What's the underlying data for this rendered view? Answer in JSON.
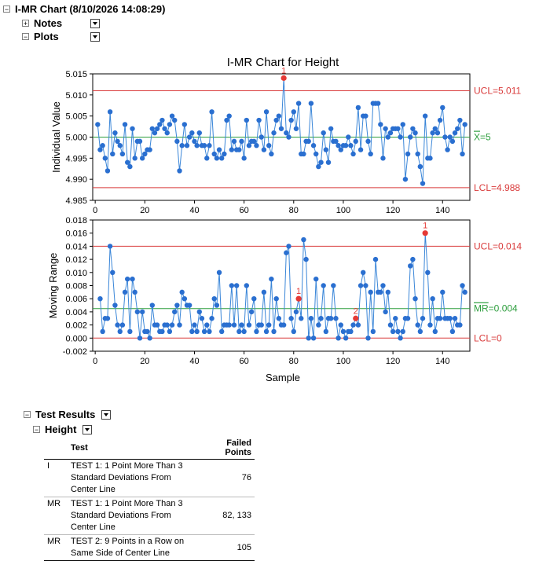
{
  "header": {
    "title": "I-MR Chart (8/10/2026 14:08:29)",
    "notes_label": "Notes",
    "plots_label": "Plots"
  },
  "chart_data": [
    {
      "type": "line",
      "title": "I-MR Chart for Height",
      "ylabel": "Individual Value",
      "xlabel": "",
      "xlim": [
        -1,
        151
      ],
      "ylim": [
        4.985,
        5.015
      ],
      "xticks": [
        0,
        20,
        40,
        60,
        80,
        100,
        120,
        140
      ],
      "yticks": [
        "4.985",
        "4.990",
        "4.995",
        "5.000",
        "5.005",
        "5.010",
        "5.015"
      ],
      "ucl": 5.011,
      "cl": 5.0,
      "lcl": 4.988,
      "ucl_label": "UCL=5.011",
      "cl_label": "=5",
      "cl_symbol": "X",
      "lcl_label": "LCL=4.988",
      "flagged": [
        {
          "x": 76,
          "label": "1"
        }
      ],
      "series": [
        {
          "values": [
            5.003,
            4.997,
            4.998,
            4.995,
            4.992,
            5.006,
            4.996,
            5.001,
            4.999,
            4.998,
            4.996,
            5.003,
            4.994,
            4.993,
            5.002,
            4.995,
            4.999,
            4.999,
            4.995,
            4.996,
            4.997,
            4.997,
            5.002,
            5.001,
            5.002,
            5.003,
            5.004,
            5.002,
            5.001,
            5.003,
            5.005,
            5.004,
            4.999,
            4.992,
            4.998,
            5.003,
            4.998,
            5.0,
            5.001,
            4.999,
            4.998,
            5.001,
            4.998,
            4.998,
            4.995,
            4.998,
            5.006,
            4.996,
            4.995,
            4.997,
            4.995,
            4.996,
            5.004,
            5.005,
            4.997,
            4.999,
            4.997,
            4.997,
            4.999,
            4.995,
            5.004,
            4.998,
            4.999,
            4.999,
            4.998,
            5.004,
            5.0,
            4.997,
            5.006,
            4.998,
            4.996,
            5.001,
            5.004,
            5.005,
            5.002,
            5.014,
            5.001,
            5.0,
            5.004,
            5.006,
            5.002,
            5.008,
            4.996,
            4.996,
            4.999,
            4.999,
            5.008,
            4.998,
            4.996,
            4.993,
            4.994,
            5.001,
            4.997,
            4.994,
            5.002,
            4.999,
            4.999,
            4.998,
            4.997,
            4.998,
            4.998,
            5.0,
            4.998,
            4.996,
            4.999,
            5.007,
            4.997,
            5.005,
            5.005,
            4.999,
            4.996,
            5.008,
            5.008,
            5.008,
            5.003,
            4.995,
            5.002,
            5.0,
            5.001,
            5.002,
            5.002,
            5.002,
            5.0,
            5.003,
            4.99,
            4.996,
            5.0,
            5.002,
            5.001,
            4.996,
            4.993,
            4.989,
            5.005,
            4.995,
            4.995,
            5.001,
            5.002,
            5.001,
            5.004,
            5.007,
            5.0,
            4.997,
            5.0,
            4.999,
            5.001,
            5.002,
            5.004,
            4.996,
            5.003
          ]
        }
      ]
    },
    {
      "type": "line",
      "title": "",
      "ylabel": "Moving Range",
      "xlabel": "Sample",
      "xlim": [
        -1,
        151
      ],
      "ylim": [
        -0.002,
        0.018
      ],
      "xticks": [
        0,
        20,
        40,
        60,
        80,
        100,
        120,
        140
      ],
      "yticks": [
        "-0.002",
        "0.000",
        "0.002",
        "0.004",
        "0.006",
        "0.008",
        "0.010",
        "0.012",
        "0.014",
        "0.016",
        "0.018"
      ],
      "ucl": 0.014,
      "cl": 0.0045,
      "lcl": 0.0,
      "ucl_label": "UCL=0.014",
      "cl_label": "=0.004",
      "cl_symbol": "MR",
      "lcl_label": "LCL=0",
      "flagged": [
        {
          "x": 82,
          "label": "1"
        },
        {
          "x": 105,
          "label": "2"
        },
        {
          "x": 133,
          "label": "1"
        }
      ],
      "series": [
        {
          "start": 2,
          "values": [
            0.006,
            0.001,
            0.003,
            0.003,
            0.014,
            0.01,
            0.005,
            0.002,
            0.001,
            0.002,
            0.007,
            0.009,
            0.001,
            0.009,
            0.007,
            0.004,
            0.0,
            0.004,
            0.001,
            0.001,
            0.0,
            0.005,
            0.002,
            0.002,
            0.001,
            0.001,
            0.002,
            0.002,
            0.001,
            0.002,
            0.004,
            0.005,
            0.002,
            0.007,
            0.006,
            0.005,
            0.005,
            0.001,
            0.002,
            0.001,
            0.004,
            0.003,
            0.001,
            0.002,
            0.001,
            0.003,
            0.006,
            0.005,
            0.01,
            0.001,
            0.002,
            0.002,
            0.002,
            0.008,
            0.002,
            0.008,
            0.001,
            0.002,
            0.001,
            0.008,
            0.002,
            0.004,
            0.006,
            0.001,
            0.002,
            0.002,
            0.007,
            0.001,
            0.002,
            0.009,
            0.001,
            0.006,
            0.003,
            0.002,
            0.002,
            0.013,
            0.014,
            0.003,
            0.001,
            0.004,
            0.006,
            0.003,
            0.015,
            0.012,
            0.0,
            0.003,
            0.0,
            0.009,
            0.002,
            0.003,
            0.008,
            0.001,
            0.003,
            0.003,
            0.008,
            0.003,
            0.0,
            0.002,
            0.001,
            0.0,
            0.001,
            0.001,
            0.002,
            0.003,
            0.002,
            0.008,
            0.01,
            0.008,
            0.0,
            0.007,
            0.001,
            0.012,
            0.007,
            0.007,
            0.008,
            0.004,
            0.007,
            0.002,
            0.001,
            0.003,
            0.001,
            0.0,
            0.001,
            0.003,
            0.003,
            0.011,
            0.012,
            0.006,
            0.002,
            0.001,
            0.003,
            0.016,
            0.01,
            0.002,
            0.006,
            0.001,
            0.003,
            0.003,
            0.007,
            0.003,
            0.003,
            0.003,
            0.001,
            0.003,
            0.002,
            0.002,
            0.008,
            0.007
          ]
        }
      ]
    }
  ],
  "results": {
    "title": "Test Results",
    "height_label": "Height",
    "col_test": "Test",
    "col_failed": "Failed Points",
    "rows": [
      {
        "chart": "I",
        "lines": [
          "TEST 1: 1 Point More Than 3",
          "Standard Deviations From",
          "Center Line"
        ],
        "failed": "76"
      },
      {
        "chart": "MR",
        "lines": [
          "TEST 1: 1 Point More Than 3",
          "Standard Deviations From",
          "Center Line"
        ],
        "failed": "82, 133"
      },
      {
        "chart": "MR",
        "lines": [
          "TEST 2: 9 Points in a Row on",
          "Same Side of Center Line"
        ],
        "failed": "105"
      }
    ]
  },
  "colors": {
    "series_line": "#3a86d8",
    "series_point": "#2a6fd0",
    "flagged": "#e53935",
    "limit": "#d93b3b",
    "center": "#2e9e3e",
    "tick_red": "#d93b3b"
  }
}
